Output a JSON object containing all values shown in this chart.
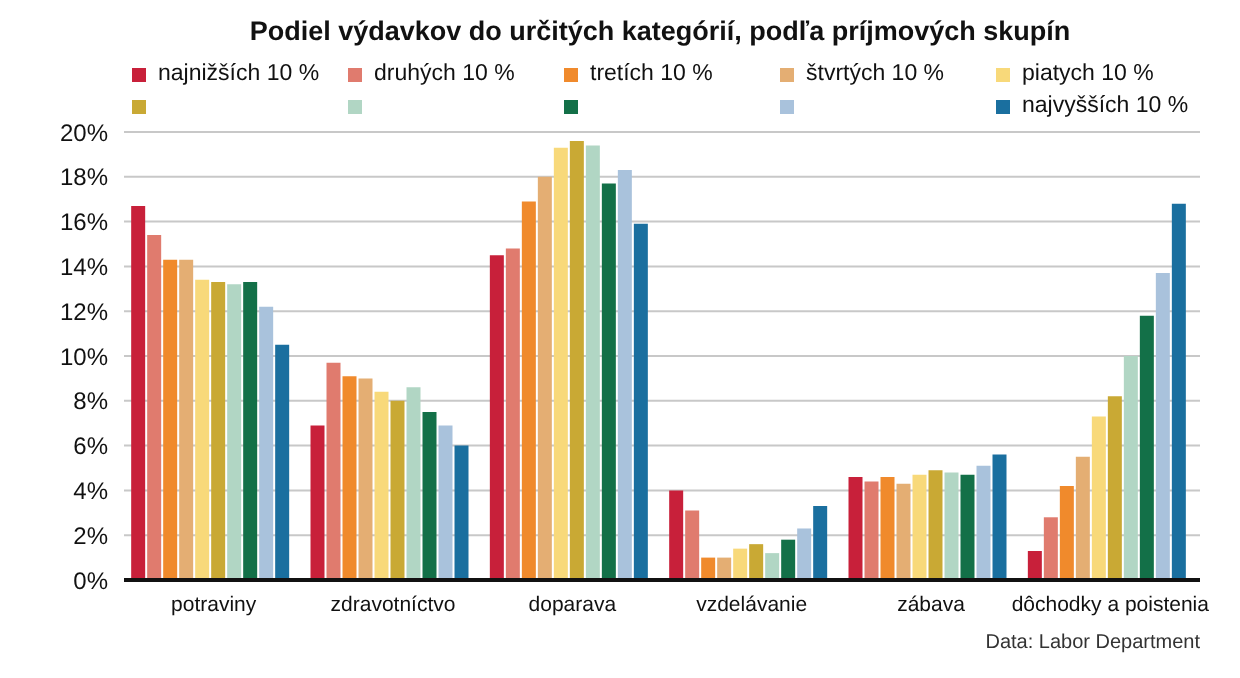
{
  "chart_data": {
    "type": "bar",
    "title": "Podiel výdavkov do určitých kategórií, podľa príjmových skupín",
    "categories": [
      "potraviny",
      "zdravotníctvo",
      "doparava",
      "vzdelávanie",
      "zábava",
      "dôchodky a poistenia"
    ],
    "series": [
      {
        "name": "najnižších 10 %",
        "color": "#c8203a",
        "values": [
          16.7,
          6.9,
          14.5,
          4.0,
          4.6,
          1.3
        ]
      },
      {
        "name": "druhých 10 %",
        "color": "#e07b6e",
        "values": [
          15.4,
          9.7,
          14.8,
          3.1,
          4.4,
          2.8
        ]
      },
      {
        "name": "tretích 10 %",
        "color": "#f08a2c",
        "values": [
          14.3,
          9.1,
          16.9,
          1.0,
          4.6,
          4.2
        ]
      },
      {
        "name": "štvrtých 10 %",
        "color": "#e4ae73",
        "values": [
          14.3,
          9.0,
          18.0,
          1.0,
          4.3,
          5.5
        ]
      },
      {
        "name": "piatych 10 %",
        "color": "#f8d97a",
        "values": [
          13.4,
          8.4,
          19.3,
          1.4,
          4.7,
          7.3
        ]
      },
      {
        "color": "#c9a934",
        "values": [
          13.3,
          8.0,
          19.6,
          1.6,
          4.9,
          8.2
        ]
      },
      {
        "color": "#b1d6c4",
        "values": [
          13.2,
          8.6,
          19.4,
          1.2,
          4.8,
          10.0
        ]
      },
      {
        "color": "#137048",
        "values": [
          13.3,
          7.5,
          17.7,
          1.8,
          4.7,
          11.8
        ]
      },
      {
        "color": "#a9c2dc",
        "values": [
          12.2,
          6.9,
          18.3,
          2.3,
          5.1,
          13.7
        ]
      },
      {
        "name": "najvyšších 10 %",
        "color": "#1a6f9f",
        "values": [
          10.5,
          6.0,
          15.9,
          3.3,
          5.6,
          16.8
        ]
      }
    ],
    "ylim": [
      0,
      20
    ],
    "yticks": [
      {
        "value": 0,
        "label": "0%"
      },
      {
        "value": 2,
        "label": "2%"
      },
      {
        "value": 4,
        "label": "4%"
      },
      {
        "value": 6,
        "label": "6%"
      },
      {
        "value": 8,
        "label": "8%"
      },
      {
        "value": 10,
        "label": "10%"
      },
      {
        "value": 12,
        "label": "12%"
      },
      {
        "value": 14,
        "label": "14%"
      },
      {
        "value": 16,
        "label": "16%"
      },
      {
        "value": 18,
        "label": "18%"
      },
      {
        "value": 20,
        "label": "20%"
      }
    ],
    "grid": "y",
    "legend": "top",
    "annotations": [
      "Data: Labor Department"
    ]
  }
}
